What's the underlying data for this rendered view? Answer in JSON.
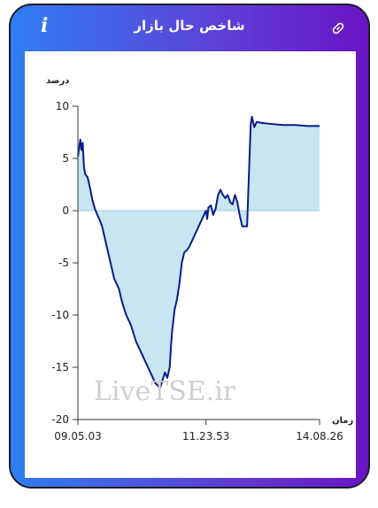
{
  "header": {
    "title": "شاخص حال بازار",
    "info_icon": "info-icon",
    "link_icon": "link-icon"
  },
  "watermark": "LiveTSE.ir",
  "colors": {
    "line": "#0a1a8c",
    "fill": "#c8e6f2",
    "zero_line": "#9fcfe4"
  },
  "chart_data": {
    "type": "area",
    "ylabel": "درصد",
    "xlabel": "زمان",
    "ylim": [
      -20,
      10
    ],
    "yticks": [
      10,
      5,
      0,
      -5,
      -10,
      -15,
      -20
    ],
    "xticks": [
      "09.05.03",
      "11.23.53",
      "14.08.26"
    ],
    "xtick_positions": [
      0,
      0.53,
      1
    ],
    "grid": false,
    "series": [
      {
        "x": [
          0.0,
          0.01,
          0.015,
          0.02,
          0.025,
          0.03,
          0.04,
          0.05,
          0.06,
          0.07,
          0.08,
          0.09,
          0.1,
          0.11,
          0.12,
          0.13,
          0.14,
          0.15,
          0.16,
          0.17,
          0.18,
          0.19,
          0.2,
          0.22,
          0.24,
          0.26,
          0.28,
          0.3,
          0.32,
          0.34,
          0.36,
          0.37,
          0.38,
          0.385,
          0.39,
          0.395,
          0.4,
          0.41,
          0.42,
          0.43,
          0.44,
          0.45,
          0.46,
          0.47,
          0.48,
          0.49,
          0.5,
          0.51,
          0.52,
          0.53,
          0.535,
          0.54,
          0.55,
          0.56,
          0.57,
          0.58,
          0.59,
          0.6,
          0.61,
          0.62,
          0.63,
          0.64,
          0.65,
          0.66,
          0.67,
          0.68,
          0.69,
          0.7,
          0.71,
          0.715,
          0.72,
          0.73,
          0.74,
          0.76,
          0.8,
          0.85,
          0.9,
          0.95,
          1.0
        ],
        "y": [
          5.2,
          6.8,
          5.8,
          6.5,
          4.2,
          3.5,
          3.2,
          2.2,
          1.0,
          0.2,
          -0.4,
          -0.9,
          -1.5,
          -2.5,
          -3.5,
          -4.5,
          -5.5,
          -6.5,
          -7.0,
          -7.5,
          -8.5,
          -9.3,
          -10.0,
          -11.0,
          -12.5,
          -13.5,
          -14.5,
          -15.5,
          -16.5,
          -17.0,
          -15.5,
          -16.0,
          -15.0,
          -13.0,
          -11.5,
          -10.5,
          -9.5,
          -8.5,
          -7.0,
          -5.0,
          -4.0,
          -3.8,
          -3.5,
          -3.0,
          -2.5,
          -2.0,
          -1.5,
          -1.0,
          -0.5,
          0.0,
          -0.8,
          0.3,
          0.5,
          -0.4,
          0.2,
          1.5,
          2.0,
          1.5,
          1.2,
          1.5,
          0.8,
          0.6,
          1.5,
          0.8,
          -0.5,
          -1.5,
          -1.5,
          -1.5,
          5.0,
          8.2,
          9.0,
          8.0,
          8.5,
          8.4,
          8.3,
          8.2,
          8.2,
          8.1,
          8.1
        ]
      }
    ]
  }
}
